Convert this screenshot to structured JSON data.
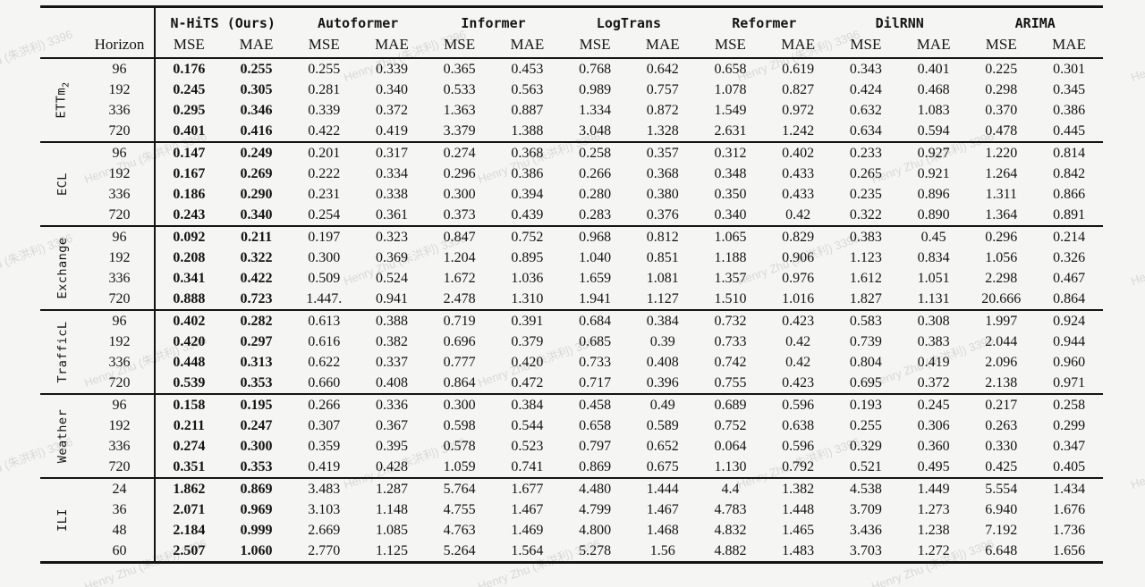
{
  "watermark": {
    "text": "Henry Zhu (朱洪利) 3396"
  },
  "table": {
    "header": {
      "horizon_label": "Horizon",
      "models": [
        "N-HiTS (Ours)",
        "Autoformer",
        "Informer",
        "LogTrans",
        "Reformer",
        "DilRNN",
        "ARIMA"
      ],
      "metric_labels": [
        "MSE",
        "MAE"
      ]
    },
    "groups": [
      {
        "id": "ettm2",
        "label": "ETTm",
        "sub": "2",
        "rows": [
          {
            "horizon": "96",
            "values": [
              "0.176",
              "0.255",
              "0.255",
              "0.339",
              "0.365",
              "0.453",
              "0.768",
              "0.642",
              "0.658",
              "0.619",
              "0.343",
              "0.401",
              "0.225",
              "0.301"
            ]
          },
          {
            "horizon": "192",
            "values": [
              "0.245",
              "0.305",
              "0.281",
              "0.340",
              "0.533",
              "0.563",
              "0.989",
              "0.757",
              "1.078",
              "0.827",
              "0.424",
              "0.468",
              "0.298",
              "0.345"
            ]
          },
          {
            "horizon": "336",
            "values": [
              "0.295",
              "0.346",
              "0.339",
              "0.372",
              "1.363",
              "0.887",
              "1.334",
              "0.872",
              "1.549",
              "0.972",
              "0.632",
              "1.083",
              "0.370",
              "0.386"
            ]
          },
          {
            "horizon": "720",
            "values": [
              "0.401",
              "0.416",
              "0.422",
              "0.419",
              "3.379",
              "1.388",
              "3.048",
              "1.328",
              "2.631",
              "1.242",
              "0.634",
              "0.594",
              "0.478",
              "0.445"
            ]
          }
        ]
      },
      {
        "id": "ecl",
        "label": "ECL",
        "sub": "",
        "rows": [
          {
            "horizon": "96",
            "values": [
              "0.147",
              "0.249",
              "0.201",
              "0.317",
              "0.274",
              "0.368",
              "0.258",
              "0.357",
              "0.312",
              "0.402",
              "0.233",
              "0.927",
              "1.220",
              "0.814"
            ]
          },
          {
            "horizon": "192",
            "values": [
              "0.167",
              "0.269",
              "0.222",
              "0.334",
              "0.296",
              "0.386",
              "0.266",
              "0.368",
              "0.348",
              "0.433",
              "0.265",
              "0.921",
              "1.264",
              "0.842"
            ]
          },
          {
            "horizon": "336",
            "values": [
              "0.186",
              "0.290",
              "0.231",
              "0.338",
              "0.300",
              "0.394",
              "0.280",
              "0.380",
              "0.350",
              "0.433",
              "0.235",
              "0.896",
              "1.311",
              "0.866"
            ]
          },
          {
            "horizon": "720",
            "values": [
              "0.243",
              "0.340",
              "0.254",
              "0.361",
              "0.373",
              "0.439",
              "0.283",
              "0.376",
              "0.340",
              "0.42",
              "0.322",
              "0.890",
              "1.364",
              "0.891"
            ]
          }
        ]
      },
      {
        "id": "exchange",
        "label": "Exchange",
        "sub": "",
        "rows": [
          {
            "horizon": "96",
            "values": [
              "0.092",
              "0.211",
              "0.197",
              "0.323",
              "0.847",
              "0.752",
              "0.968",
              "0.812",
              "1.065",
              "0.829",
              "0.383",
              "0.45",
              "0.296",
              "0.214"
            ]
          },
          {
            "horizon": "192",
            "values": [
              "0.208",
              "0.322",
              "0.300",
              "0.369",
              "1.204",
              "0.895",
              "1.040",
              "0.851",
              "1.188",
              "0.906",
              "1.123",
              "0.834",
              "1.056",
              "0.326"
            ]
          },
          {
            "horizon": "336",
            "values": [
              "0.341",
              "0.422",
              "0.509",
              "0.524",
              "1.672",
              "1.036",
              "1.659",
              "1.081",
              "1.357",
              "0.976",
              "1.612",
              "1.051",
              "2.298",
              "0.467"
            ]
          },
          {
            "horizon": "720",
            "values": [
              "0.888",
              "0.723",
              "1.447.",
              "0.941",
              "2.478",
              "1.310",
              "1.941",
              "1.127",
              "1.510",
              "1.016",
              "1.827",
              "1.131",
              "20.666",
              "0.864"
            ]
          }
        ]
      },
      {
        "id": "trafficl",
        "label": "TrafficL",
        "sub": "",
        "rows": [
          {
            "horizon": "96",
            "values": [
              "0.402",
              "0.282",
              "0.613",
              "0.388",
              "0.719",
              "0.391",
              "0.684",
              "0.384",
              "0.732",
              "0.423",
              "0.583",
              "0.308",
              "1.997",
              "0.924"
            ]
          },
          {
            "horizon": "192",
            "values": [
              "0.420",
              "0.297",
              "0.616",
              "0.382",
              "0.696",
              "0.379",
              "0.685",
              "0.39",
              "0.733",
              "0.42",
              "0.739",
              "0.383",
              "2.044",
              "0.944"
            ]
          },
          {
            "horizon": "336",
            "values": [
              "0.448",
              "0.313",
              "0.622",
              "0.337",
              "0.777",
              "0.420",
              "0.733",
              "0.408",
              "0.742",
              "0.42",
              "0.804",
              "0.419",
              "2.096",
              "0.960"
            ]
          },
          {
            "horizon": "720",
            "values": [
              "0.539",
              "0.353",
              "0.660",
              "0.408",
              "0.864",
              "0.472",
              "0.717",
              "0.396",
              "0.755",
              "0.423",
              "0.695",
              "0.372",
              "2.138",
              "0.971"
            ]
          }
        ]
      },
      {
        "id": "weather",
        "label": "Weather",
        "sub": "",
        "rows": [
          {
            "horizon": "96",
            "values": [
              "0.158",
              "0.195",
              "0.266",
              "0.336",
              "0.300",
              "0.384",
              "0.458",
              "0.49",
              "0.689",
              "0.596",
              "0.193",
              "0.245",
              "0.217",
              "0.258"
            ]
          },
          {
            "horizon": "192",
            "values": [
              "0.211",
              "0.247",
              "0.307",
              "0.367",
              "0.598",
              "0.544",
              "0.658",
              "0.589",
              "0.752",
              "0.638",
              "0.255",
              "0.306",
              "0.263",
              "0.299"
            ]
          },
          {
            "horizon": "336",
            "values": [
              "0.274",
              "0.300",
              "0.359",
              "0.395",
              "0.578",
              "0.523",
              "0.797",
              "0.652",
              "0.064",
              "0.596",
              "0.329",
              "0.360",
              "0.330",
              "0.347"
            ]
          },
          {
            "horizon": "720",
            "values": [
              "0.351",
              "0.353",
              "0.419",
              "0.428",
              "1.059",
              "0.741",
              "0.869",
              "0.675",
              "1.130",
              "0.792",
              "0.521",
              "0.495",
              "0.425",
              "0.405"
            ]
          }
        ]
      },
      {
        "id": "ili",
        "label": "ILI",
        "sub": "",
        "rows": [
          {
            "horizon": "24",
            "values": [
              "1.862",
              "0.869",
              "3.483",
              "1.287",
              "5.764",
              "1.677",
              "4.480",
              "1.444",
              "4.4",
              "1.382",
              "4.538",
              "1.449",
              "5.554",
              "1.434"
            ]
          },
          {
            "horizon": "36",
            "values": [
              "2.071",
              "0.969",
              "3.103",
              "1.148",
              "4.755",
              "1.467",
              "4.799",
              "1.467",
              "4.783",
              "1.448",
              "3.709",
              "1.273",
              "6.940",
              "1.676"
            ]
          },
          {
            "horizon": "48",
            "values": [
              "2.184",
              "0.999",
              "2.669",
              "1.085",
              "4.763",
              "1.469",
              "4.800",
              "1.468",
              "4.832",
              "1.465",
              "3.436",
              "1.238",
              "7.192",
              "1.736"
            ]
          },
          {
            "horizon": "60",
            "values": [
              "2.507",
              "1.060",
              "2.770",
              "1.125",
              "5.264",
              "1.564",
              "5.278",
              "1.56",
              "4.882",
              "1.483",
              "3.703",
              "1.272",
              "6.648",
              "1.656"
            ]
          }
        ]
      }
    ]
  }
}
